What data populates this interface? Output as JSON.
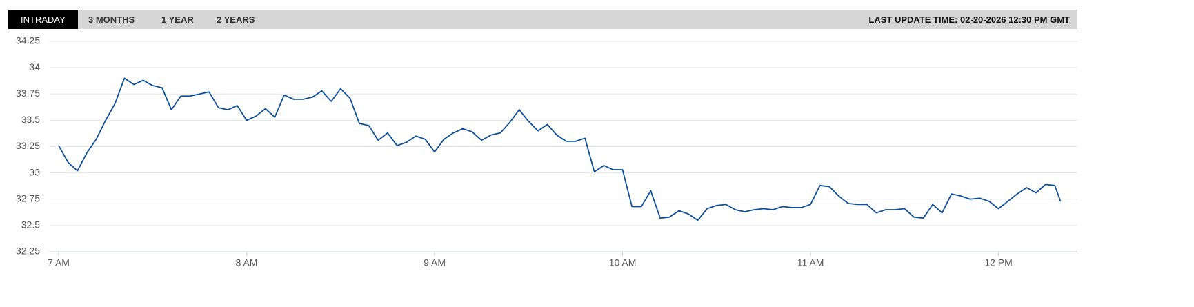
{
  "tabs": [
    "INTRADAY",
    "3 MONTHS",
    "1 YEAR",
    "2 YEARS"
  ],
  "last_update": "LAST UPDATE TIME: 02-20-2026 12:30 PM GMT",
  "chart_data": {
    "type": "line",
    "x": [
      7,
      7.05,
      7.1,
      7.15,
      7.2,
      7.25,
      7.3,
      7.35,
      7.4,
      7.45,
      7.5,
      7.55,
      7.6,
      7.65,
      7.7,
      7.75,
      7.8,
      7.85,
      7.9,
      7.95,
      8,
      8.05,
      8.1,
      8.15,
      8.2,
      8.25,
      8.3,
      8.35,
      8.4,
      8.45,
      8.5,
      8.55,
      8.6,
      8.65,
      8.7,
      8.75,
      8.8,
      8.85,
      8.9,
      8.95,
      9,
      9.05,
      9.1,
      9.15,
      9.2,
      9.25,
      9.3,
      9.35,
      9.4,
      9.45,
      9.5,
      9.55,
      9.6,
      9.65,
      9.7,
      9.75,
      9.8,
      9.85,
      9.9,
      9.95,
      10,
      10.05,
      10.1,
      10.15,
      10.2,
      10.25,
      10.3,
      10.35,
      10.4,
      10.45,
      10.5,
      10.55,
      10.6,
      10.65,
      10.7,
      10.75,
      10.8,
      10.85,
      10.9,
      10.95,
      11,
      11.05,
      11.1,
      11.15,
      11.2,
      11.25,
      11.3,
      11.35,
      11.4,
      11.45,
      11.5,
      11.55,
      11.6,
      11.65,
      11.7,
      11.75,
      11.8,
      11.85,
      11.9,
      11.95,
      12,
      12.05,
      12.1,
      12.15,
      12.2,
      12.25,
      12.3,
      12.33
    ],
    "values": [
      33.26,
      33.1,
      33.02,
      33.19,
      33.32,
      33.5,
      33.66,
      33.9,
      33.84,
      33.88,
      33.83,
      33.81,
      33.6,
      33.73,
      33.73,
      33.75,
      33.77,
      33.62,
      33.6,
      33.64,
      33.5,
      33.54,
      33.61,
      33.53,
      33.74,
      33.7,
      33.7,
      33.72,
      33.78,
      33.68,
      33.8,
      33.71,
      33.47,
      33.45,
      33.31,
      33.38,
      33.26,
      33.29,
      33.35,
      33.32,
      33.2,
      33.32,
      33.38,
      33.42,
      33.39,
      33.31,
      33.36,
      33.38,
      33.48,
      33.6,
      33.49,
      33.4,
      33.46,
      33.36,
      33.3,
      33.3,
      33.33,
      33.01,
      33.07,
      33.03,
      33.03,
      32.68,
      32.68,
      32.83,
      32.57,
      32.58,
      32.64,
      32.61,
      32.55,
      32.66,
      32.69,
      32.7,
      32.65,
      32.63,
      32.65,
      32.66,
      32.65,
      32.68,
      32.67,
      32.67,
      32.7,
      32.88,
      32.87,
      32.78,
      32.71,
      32.7,
      32.7,
      32.62,
      32.65,
      32.65,
      32.66,
      32.58,
      32.57,
      32.7,
      32.62,
      32.8,
      32.78,
      32.75,
      32.76,
      32.73,
      32.66,
      32.73,
      32.8,
      32.86,
      32.81,
      32.89,
      32.88,
      32.73
    ],
    "color": "#0b4f9c",
    "xlim": [
      6.95,
      12.42
    ],
    "xticks": [
      {
        "value": 7,
        "label": "7 AM"
      },
      {
        "value": 8,
        "label": "8 AM"
      },
      {
        "value": 9,
        "label": "9 AM"
      },
      {
        "value": 10,
        "label": "10 AM"
      },
      {
        "value": 11,
        "label": "11 AM"
      },
      {
        "value": 12,
        "label": "12 PM"
      }
    ],
    "ylim": [
      32.25,
      34.25
    ],
    "yticks": [
      32.25,
      32.5,
      32.75,
      33,
      33.25,
      33.5,
      33.75,
      34,
      34.25
    ],
    "grid": true
  }
}
